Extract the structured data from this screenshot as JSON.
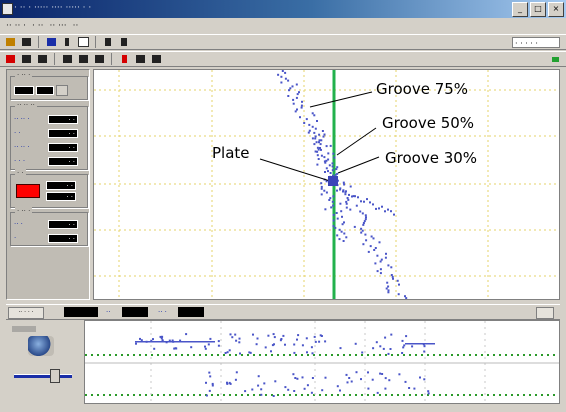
{
  "window": {
    "title": "· ·· · ·····   ···· ····· · ·",
    "controls": [
      "_",
      "□",
      "×"
    ]
  },
  "menubar": [
    "·· ·· ·",
    "· ··",
    "·· ···",
    "··"
  ],
  "toolbar": {
    "zoom_value": "· · · · ·"
  },
  "left_panel": {
    "groups": [
      {
        "title": "· ·· ·",
        "rows": [
          {
            "label": "",
            "value": ""
          }
        ]
      },
      {
        "title": "·· ·· ··",
        "rows": [
          {
            "label": "·· ·· ·",
            "value": "· ·"
          },
          {
            "label": "· ·",
            "value": "· ·"
          },
          {
            "label": "·· ·· ·",
            "value": "· ·"
          },
          {
            "label": "· · ·",
            "value": "· ·"
          }
        ]
      },
      {
        "title": "· ·",
        "rows": [
          {
            "label": "",
            "value": "· ·"
          },
          {
            "label": "",
            "value": "· ·"
          }
        ]
      },
      {
        "title": "· ·· ·",
        "rows": [
          {
            "label": "·· ·",
            "value": "· ·"
          },
          {
            "label": "·",
            "value": "· ·"
          }
        ]
      }
    ]
  },
  "annotations": {
    "groove75": "Groove 75%",
    "groove50": "Groove 50%",
    "groove30": "Groove 30%",
    "plate": "Plate"
  },
  "colors": {
    "grid": "#e6d36a",
    "vertical_marker": "#22b14c",
    "dots": "#4a55c8",
    "strip_line": "#2a9a2a"
  },
  "strip_tabs": [
    "·· · · ·",
    "··",
    "·· ·"
  ]
}
